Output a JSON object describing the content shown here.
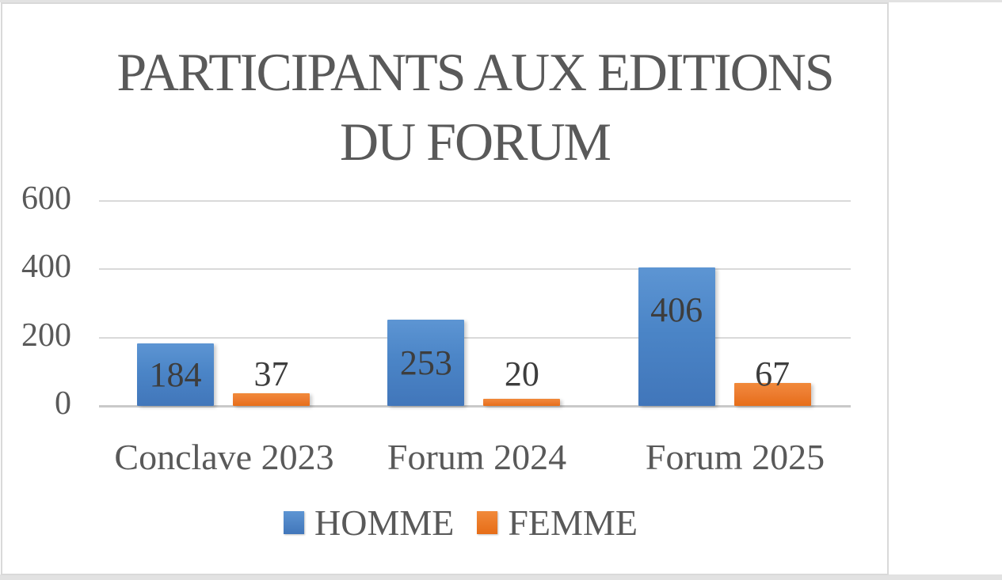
{
  "chart_data": {
    "type": "bar",
    "title": "PARTICIPANTS AUX EDITIONS DU FORUM",
    "title_lines": [
      "PARTICIPANTS AUX EDITIONS",
      "DU FORUM"
    ],
    "categories": [
      "Conclave 2023",
      "Forum 2024",
      "Forum 2025"
    ],
    "series": [
      {
        "name": "HOMME",
        "color": "#4a86c8",
        "values": [
          184,
          253,
          406
        ]
      },
      {
        "name": "FEMME",
        "color": "#ed7d31",
        "values": [
          37,
          20,
          67
        ]
      }
    ],
    "y_ticks": [
      0,
      200,
      400,
      600
    ],
    "ylim": [
      0,
      600
    ],
    "xlabel": "",
    "ylabel": "",
    "grid": true,
    "data_labels": true,
    "legend_position": "bottom"
  },
  "colors": {
    "homme_blue": "#4a86c8",
    "femme_orange": "#ed7d31",
    "title_gray": "#595959",
    "data_label_gray": "#3d3d3d",
    "gridline": "#d9d9d9",
    "axis_line": "#c9c9c9",
    "frame_border": "#d9d9d9",
    "page_strip": "#e2e2e2",
    "background": "#ffffff"
  }
}
